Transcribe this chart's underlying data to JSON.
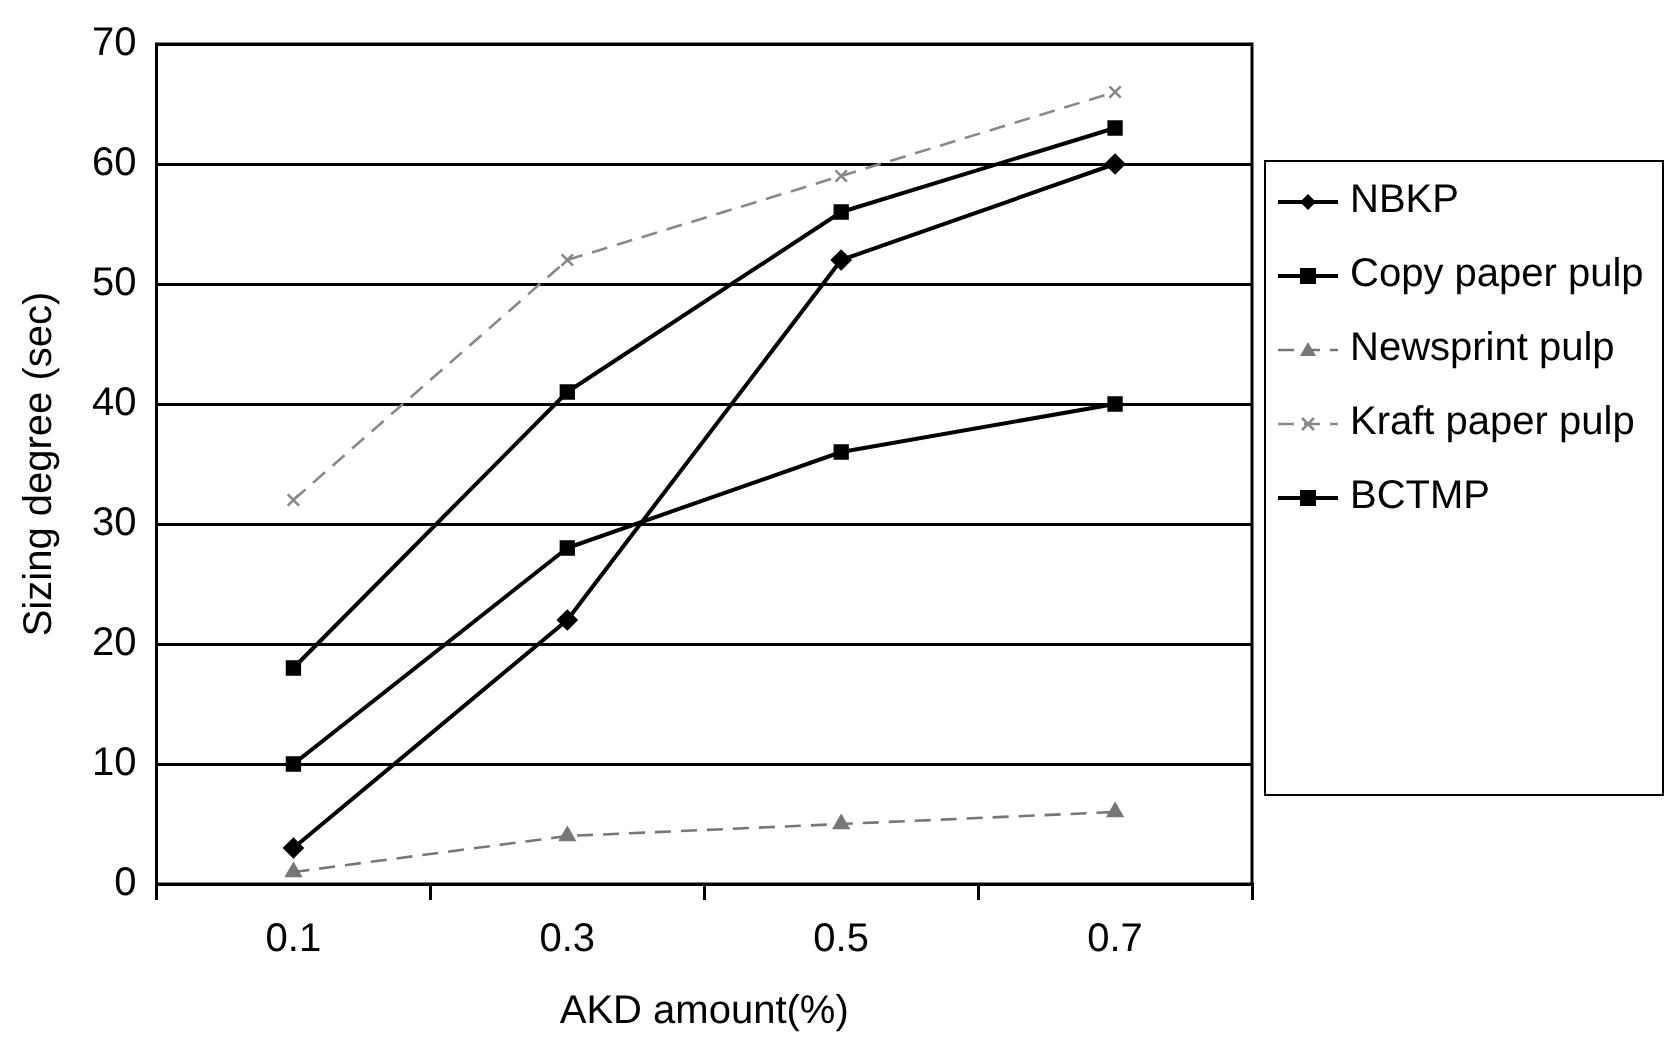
{
  "chart_data": {
    "type": "line",
    "xlabel": "AKD amount(%)",
    "ylabel": "Sizing degree (sec)",
    "categories": [
      "0.1",
      "0.3",
      "0.5",
      "0.7"
    ],
    "ylim": [
      0,
      70
    ],
    "yticks": [
      0,
      10,
      20,
      30,
      40,
      50,
      60,
      70
    ],
    "grid": "y",
    "legend": "right",
    "series": [
      {
        "name": "NBKP",
        "color": "#000000",
        "marker": "diamond",
        "line_style": "solid",
        "values": [
          3,
          22,
          52,
          60
        ]
      },
      {
        "name": "Copy paper pulp",
        "color": "#000000",
        "marker": "square",
        "line_style": "solid",
        "values": [
          18,
          41,
          56,
          63
        ]
      },
      {
        "name": "Newsprint pulp",
        "color": "#777777",
        "marker": "triangle",
        "line_style": "dashed",
        "values": [
          1,
          4,
          5,
          6
        ]
      },
      {
        "name": "Kraft paper pulp",
        "color": "#888888",
        "marker": "cross",
        "line_style": "dashed",
        "values": [
          32,
          52,
          59,
          66
        ]
      },
      {
        "name": "BCTMP",
        "color": "#000000",
        "marker": "square",
        "line_style": "solid",
        "values": [
          10,
          28,
          36,
          40
        ]
      }
    ]
  }
}
